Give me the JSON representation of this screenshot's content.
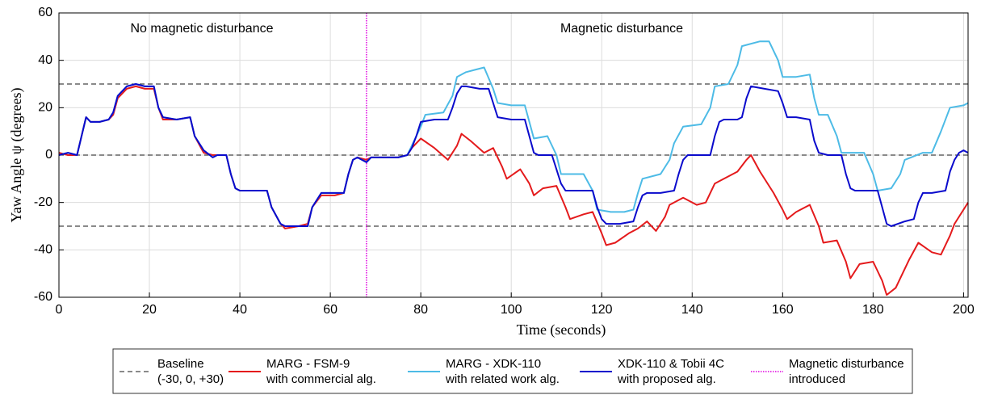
{
  "chart_data": {
    "type": "line",
    "xlabel": "Time (seconds)",
    "ylabel": "Yaw Angle ψ (degrees)",
    "xlim": [
      0,
      201
    ],
    "ylim": [
      -60,
      60
    ],
    "xticks": [
      0,
      20,
      40,
      60,
      80,
      100,
      120,
      140,
      160,
      180,
      200
    ],
    "yticks": [
      -60,
      -40,
      -20,
      0,
      20,
      40,
      60
    ],
    "grid": true,
    "annotations": [
      "No magnetic disturbance",
      "Magnetic disturbance"
    ],
    "baseline": {
      "name": [
        "Baseline",
        "(-30, 0, +30)"
      ],
      "color": "#444444",
      "values": [
        -30,
        0,
        30
      ]
    },
    "series": [
      {
        "name": [
          "MARG - FSM-9",
          "with commercial alg."
        ],
        "color": "#e41a1c",
        "x": [
          0,
          2,
          4,
          5,
          6,
          7,
          9,
          11,
          12,
          13,
          15,
          17,
          19,
          21,
          22,
          23,
          26,
          29,
          30,
          32,
          34,
          35,
          37,
          38,
          39,
          40,
          42,
          46,
          47,
          49,
          50,
          53,
          55,
          56,
          58,
          61,
          63,
          64,
          65,
          66,
          68,
          69,
          72,
          75,
          77,
          78,
          80,
          83,
          86,
          88,
          89,
          91,
          94,
          96,
          98,
          99,
          102,
          104,
          105,
          107,
          110,
          112,
          113,
          116,
          118,
          120,
          121,
          123,
          126,
          128,
          130,
          132,
          134,
          135,
          138,
          141,
          143,
          144,
          145,
          148,
          150,
          152,
          153,
          155,
          158,
          160,
          161,
          163,
          166,
          168,
          169,
          172,
          174,
          175,
          177,
          180,
          182,
          183,
          185,
          188,
          190,
          193,
          195,
          197,
          198,
          201
        ],
        "values": [
          1,
          0,
          0,
          8,
          16,
          14,
          14,
          15,
          17,
          24,
          28,
          29,
          28,
          28,
          20,
          15,
          15,
          16,
          8,
          1,
          0,
          0,
          0,
          -8,
          -14,
          -15,
          -15,
          -15,
          -22,
          -29,
          -31,
          -30,
          -29,
          -22,
          -17,
          -17,
          -16,
          -8,
          -2,
          -1,
          -2,
          -1,
          -1,
          -1,
          0,
          3,
          7,
          3,
          -2,
          4,
          9,
          6,
          1,
          3,
          -5,
          -10,
          -6,
          -12,
          -17,
          -14,
          -13,
          -22,
          -27,
          -25,
          -24,
          -33,
          -38,
          -37,
          -33,
          -31,
          -28,
          -32,
          -26,
          -21,
          -18,
          -21,
          -20,
          -16,
          -12,
          -9,
          -7,
          -2,
          0,
          -7,
          -16,
          -23,
          -27,
          -24,
          -21,
          -30,
          -37,
          -36,
          -45,
          -52,
          -46,
          -45,
          -53,
          -59,
          -56,
          -44,
          -37,
          -41,
          -42,
          -34,
          -29,
          -20
        ]
      },
      {
        "name": [
          "MARG - XDK-110",
          "with related work alg."
        ],
        "color": "#4dbbe6",
        "x": [
          0,
          2,
          4,
          5,
          6,
          7,
          9,
          11,
          12,
          13,
          15,
          17,
          19,
          21,
          22,
          23,
          26,
          29,
          30,
          32,
          34,
          35,
          37,
          38,
          39,
          40,
          42,
          46,
          47,
          49,
          50,
          53,
          55,
          56,
          58,
          61,
          63,
          64,
          65,
          66,
          67,
          68,
          69,
          72,
          75,
          77,
          78,
          80,
          81,
          85,
          87,
          88,
          90,
          92,
          94,
          96,
          97,
          100,
          103,
          104,
          105,
          108,
          110,
          111,
          116,
          118,
          119,
          122,
          125,
          127,
          128,
          129,
          133,
          135,
          136,
          138,
          142,
          144,
          145,
          148,
          150,
          151,
          155,
          157,
          159,
          160,
          163,
          166,
          167,
          168,
          170,
          172,
          173,
          178,
          180,
          181,
          184,
          186,
          187,
          191,
          193,
          195,
          197,
          200,
          201
        ],
        "values": [
          0,
          1,
          0,
          8,
          16,
          14,
          14,
          15,
          18,
          25,
          29,
          30,
          29,
          29,
          20,
          16,
          15,
          16,
          8,
          2,
          -1,
          0,
          0,
          -8,
          -14,
          -15,
          -15,
          -15,
          -22,
          -29,
          -30,
          -30,
          -30,
          -22,
          -16,
          -16,
          -16,
          -8,
          -2,
          -1,
          -2,
          -3,
          -1,
          -1,
          -1,
          0,
          4,
          12,
          17,
          18,
          25,
          33,
          35,
          36,
          37,
          28,
          22,
          21,
          21,
          14,
          7,
          8,
          0,
          -8,
          -8,
          -15,
          -23,
          -24,
          -24,
          -23,
          -16,
          -10,
          -8,
          -2,
          5,
          12,
          13,
          20,
          29,
          30,
          38,
          46,
          48,
          48,
          40,
          33,
          33,
          34,
          24,
          17,
          17,
          8,
          1,
          1,
          -8,
          -15,
          -14,
          -8,
          -2,
          1,
          1,
          10,
          20,
          21,
          22
        ]
      },
      {
        "name": [
          "XDK-110 & Tobii 4C",
          "with proposed alg."
        ],
        "color": "#0a0acc",
        "x": [
          0,
          2,
          4,
          5,
          6,
          7,
          9,
          11,
          12,
          13,
          15,
          17,
          19,
          21,
          22,
          23,
          26,
          29,
          30,
          32,
          34,
          35,
          37,
          38,
          39,
          40,
          42,
          46,
          47,
          49,
          50,
          53,
          55,
          56,
          58,
          61,
          63,
          64,
          65,
          66,
          67,
          68,
          69,
          72,
          75,
          77,
          78,
          79,
          80,
          83,
          86,
          87,
          88,
          89,
          90,
          93,
          95,
          96,
          97,
          100,
          103,
          104,
          105,
          106,
          109,
          110,
          111,
          112,
          115,
          118,
          119,
          120,
          121,
          124,
          127,
          128,
          129,
          130,
          133,
          136,
          137,
          138,
          139,
          142,
          144,
          145,
          146,
          147,
          150,
          151,
          152,
          153,
          156,
          159,
          160,
          161,
          163,
          166,
          167,
          168,
          170,
          173,
          174,
          175,
          176,
          179,
          181,
          182,
          183,
          184,
          187,
          189,
          190,
          191,
          193,
          196,
          197,
          198,
          199,
          200,
          201
        ],
        "values": [
          0,
          1,
          0,
          8,
          16,
          14,
          14,
          15,
          18,
          25,
          29,
          30,
          29,
          29,
          20,
          16,
          15,
          16,
          8,
          2,
          -1,
          0,
          0,
          -8,
          -14,
          -15,
          -15,
          -15,
          -22,
          -29,
          -30,
          -30,
          -30,
          -22,
          -16,
          -16,
          -16,
          -8,
          -2,
          -1,
          -2,
          -3,
          -1,
          -1,
          -1,
          0,
          3,
          8,
          14,
          15,
          15,
          20,
          26,
          29,
          29,
          28,
          28,
          22,
          16,
          15,
          15,
          8,
          1,
          0,
          0,
          -6,
          -12,
          -15,
          -15,
          -15,
          -22,
          -27,
          -29,
          -29,
          -28,
          -22,
          -17,
          -16,
          -16,
          -15,
          -8,
          -2,
          0,
          0,
          0,
          8,
          14,
          15,
          15,
          16,
          24,
          29,
          28,
          27,
          22,
          16,
          16,
          15,
          6,
          1,
          0,
          0,
          -8,
          -14,
          -15,
          -15,
          -15,
          -22,
          -29,
          -30,
          -28,
          -27,
          -20,
          -16,
          -16,
          -15,
          -7,
          -2,
          1,
          2,
          1
        ]
      }
    ],
    "events": [
      {
        "x": 68,
        "name": [
          "Magnetic disturbance",
          "introduced"
        ],
        "color": "#e000e0"
      }
    ]
  }
}
